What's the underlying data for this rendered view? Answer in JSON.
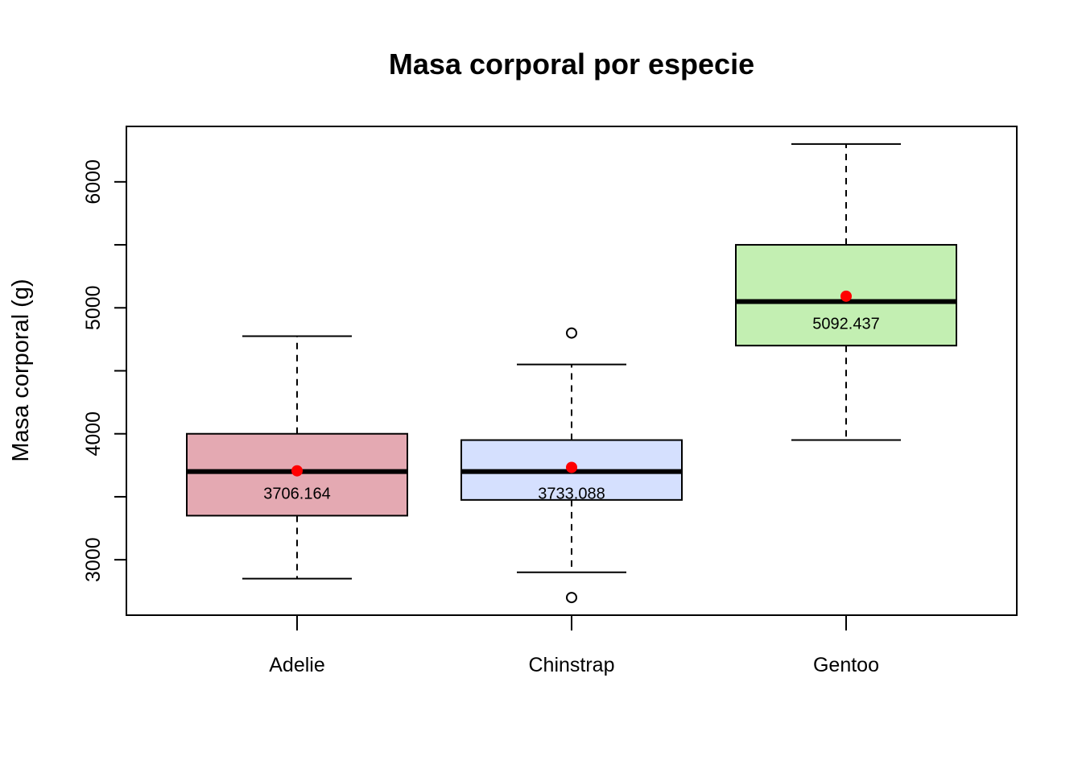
{
  "chart_data": {
    "type": "box",
    "title": "Masa corporal por especie",
    "xlabel": "",
    "ylabel": "Masa corporal (g)",
    "ylim": [
      2560,
      6440
    ],
    "yticks": [
      3000,
      4000,
      5000,
      6000
    ],
    "yticks_minor": [
      3500,
      4500,
      5500
    ],
    "grid": false,
    "categories": [
      "Adelie",
      "Chinstrap",
      "Gentoo"
    ],
    "boxes": [
      {
        "name": "Adelie",
        "color": "#E4A9B2",
        "whisker_low": 2850,
        "q1": 3350,
        "median": 3700,
        "q3": 4000,
        "whisker_high": 4775,
        "mean": 3706.164,
        "mean_label": "3706.164",
        "outliers": []
      },
      {
        "name": "Chinstrap",
        "color": "#D5E0FE",
        "whisker_low": 2900,
        "q1": 3475,
        "median": 3700,
        "q3": 3950,
        "whisker_high": 4550,
        "mean": 3733.088,
        "mean_label": "3733.088",
        "outliers": [
          4800,
          2700
        ]
      },
      {
        "name": "Gentoo",
        "color": "#C3EFB2",
        "whisker_low": 3950,
        "q1": 4700,
        "median": 5050,
        "q3": 5500,
        "whisker_high": 6300,
        "mean": 5092.437,
        "mean_label": "5092.437",
        "outliers": []
      }
    ],
    "mean_marker_color": "#FF0000"
  }
}
